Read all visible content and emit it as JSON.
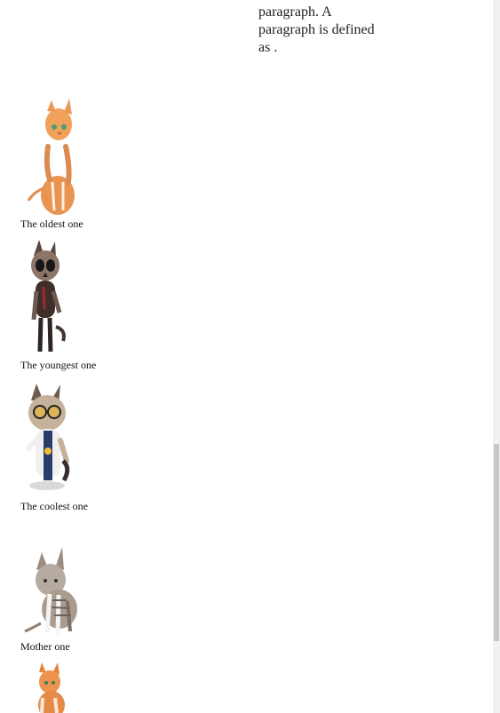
{
  "content": {
    "paragraph_text": "paragraph. A paragraph is defined as ."
  },
  "cats": [
    {
      "caption": "The oldest one",
      "icon": "orange-kitten-image"
    },
    {
      "caption": "The youngest one",
      "icon": "siamese-cat-image"
    },
    {
      "caption": "The coolest one",
      "icon": "cartoon-cat-image"
    },
    {
      "caption": "Mother one",
      "icon": "tabby-cat-image"
    },
    {
      "caption": "",
      "icon": "orange-kitten-image"
    }
  ]
}
